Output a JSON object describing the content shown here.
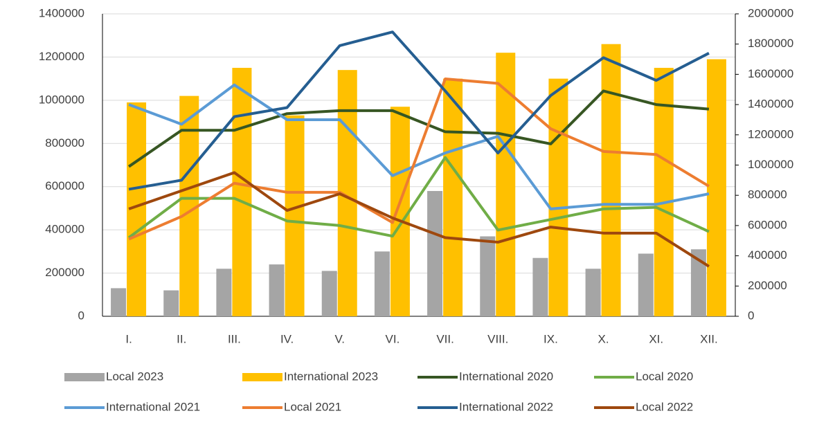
{
  "chart_data": {
    "type": "bar",
    "categories": [
      "I.",
      "II.",
      "III.",
      "IV.",
      "V.",
      "VI.",
      "VII.",
      "VIII.",
      "IX.",
      "X.",
      "XI.",
      "XII."
    ],
    "ylim": [
      0,
      1400000
    ],
    "yticks": [
      0,
      200000,
      400000,
      600000,
      800000,
      1000000,
      1200000,
      1400000
    ],
    "y2lim": [
      0,
      2000000
    ],
    "y2ticks": [
      0,
      200000,
      400000,
      600000,
      800000,
      1000000,
      1200000,
      1400000,
      1600000,
      1800000,
      2000000
    ],
    "legend": "bottom",
    "series": [
      {
        "name": "Local 2023",
        "type": "bar",
        "color": "#a5a5a5",
        "values": [
          130000,
          120000,
          220000,
          240000,
          210000,
          300000,
          580000,
          370000,
          270000,
          220000,
          290000,
          310000
        ]
      },
      {
        "name": "International 2023",
        "type": "bar",
        "color": "#ffc000",
        "values": [
          990000,
          1020000,
          1150000,
          930000,
          1140000,
          970000,
          1100000,
          1220000,
          1100000,
          1260000,
          1150000,
          1190000
        ]
      },
      {
        "name": "International 2020",
        "type": "line",
        "axis": "y2",
        "color": "#375623",
        "values": [
          990000,
          1230000,
          1230000,
          1340000,
          1360000,
          1360000,
          1220000,
          1210000,
          1140000,
          1490000,
          1400000,
          1370000
        ]
      },
      {
        "name": "Local 2020",
        "type": "line",
        "axis": "y2",
        "color": "#70ad47",
        "values": [
          520000,
          780000,
          780000,
          630000,
          600000,
          530000,
          1050000,
          570000,
          640000,
          710000,
          720000,
          560000
        ]
      },
      {
        "name": "International 2021",
        "type": "line",
        "axis": "y2",
        "color": "#5b9bd5",
        "values": [
          1400000,
          1270000,
          1530000,
          1300000,
          1300000,
          930000,
          1080000,
          1190000,
          710000,
          740000,
          740000,
          810000
        ]
      },
      {
        "name": "Local 2021",
        "type": "line",
        "axis": "y2",
        "color": "#ed7d31",
        "values": [
          510000,
          660000,
          880000,
          820000,
          820000,
          620000,
          1570000,
          1540000,
          1240000,
          1090000,
          1070000,
          860000
        ]
      },
      {
        "name": "International 2022",
        "type": "line",
        "axis": "y2",
        "color": "#255e91",
        "values": [
          840000,
          900000,
          1320000,
          1380000,
          1790000,
          1880000,
          1490000,
          1080000,
          1460000,
          1710000,
          1560000,
          1740000
        ]
      },
      {
        "name": "Local 2022",
        "type": "line",
        "axis": "y2",
        "color": "#9e480e",
        "values": [
          710000,
          830000,
          950000,
          700000,
          810000,
          650000,
          520000,
          490000,
          590000,
          550000,
          550000,
          330000
        ]
      }
    ]
  }
}
